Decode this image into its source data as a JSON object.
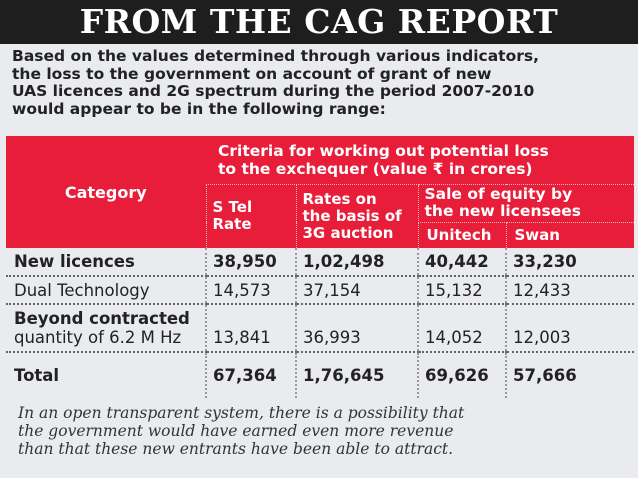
{
  "title": "FROM THE CAG REPORT",
  "intro": [
    "Based on the values determined through various indicators,",
    "the loss to the government on account of grant of new",
    "UAS licences and 2G spectrum during the period 2007-2010",
    "would appear to be in the following range:"
  ],
  "table": {
    "header": {
      "category": "Category",
      "criteria": [
        "Criteria for working out potential loss",
        "to the exchequer (value ₹ in crores)"
      ],
      "stel": [
        "S Tel",
        "Rate"
      ],
      "rates3g": [
        "Rates on",
        "the basis of",
        "3G auction"
      ],
      "sale": [
        "Sale of equity by",
        "the new licensees"
      ],
      "unitech": "Unitech",
      "swan": "Swan"
    },
    "rows": [
      {
        "category": [
          "New licences"
        ],
        "stel": "38,950",
        "rates3g": "1,02,498",
        "unitech": "40,442",
        "swan": "33,230"
      },
      {
        "category": [
          "Dual Technology"
        ],
        "stel": "14,573",
        "rates3g": "37,154",
        "unitech": "15,132",
        "swan": "12,433"
      },
      {
        "category": [
          "Beyond contracted",
          "quantity of 6.2 M Hz"
        ],
        "stel": "13,841",
        "rates3g": "36,993",
        "unitech": "14,052",
        "swan": "12,003"
      },
      {
        "category": [
          "Total"
        ],
        "stel": "67,364",
        "rates3g": "1,76,645",
        "unitech": "69,626",
        "swan": "57,666"
      }
    ]
  },
  "note": [
    "In an open transparent system, there is a possibility that",
    "the government would have earned even more revenue",
    "than that these new entrants have been able to attract."
  ],
  "colors": {
    "header_red": "#e81d39",
    "banner": "#1e1e1e",
    "background": "#e9ebef"
  }
}
